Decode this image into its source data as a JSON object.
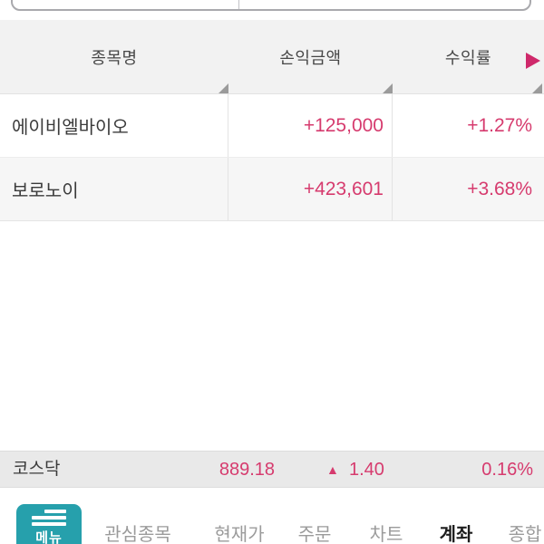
{
  "colors": {
    "accent_pink": "#d63b6e",
    "arrow_pink": "#cf296b",
    "menu_teal": "#26a0ac",
    "header_bg": "#f2f2f2",
    "row_alt_bg": "#f6f6f6",
    "index_bar_bg": "#e9e9e9"
  },
  "top_control": {
    "left_value": "",
    "right_value": ""
  },
  "table": {
    "columns": [
      {
        "label": "종목명"
      },
      {
        "label": "손익금액"
      },
      {
        "label": "수익률"
      }
    ],
    "rows": [
      {
        "name": "에이비엘바이오",
        "profit": "+125,000",
        "rate": "+1.27%"
      },
      {
        "name": "보로노이",
        "profit": "+423,601",
        "rate": "+3.68%"
      }
    ]
  },
  "index_bar": {
    "name": "코스닥",
    "value": "889.18",
    "change_icon": "▲",
    "change": "1.40",
    "change_rate": "0.16%"
  },
  "bottom_nav": {
    "menu_button_label": "메뉴",
    "items": [
      {
        "label": "관심종목",
        "active": false
      },
      {
        "label": "현재가",
        "active": false
      },
      {
        "label": "주문",
        "active": false
      },
      {
        "label": "차트",
        "active": false
      },
      {
        "label": "계좌",
        "active": true
      },
      {
        "label": "종합",
        "active": false
      }
    ]
  }
}
